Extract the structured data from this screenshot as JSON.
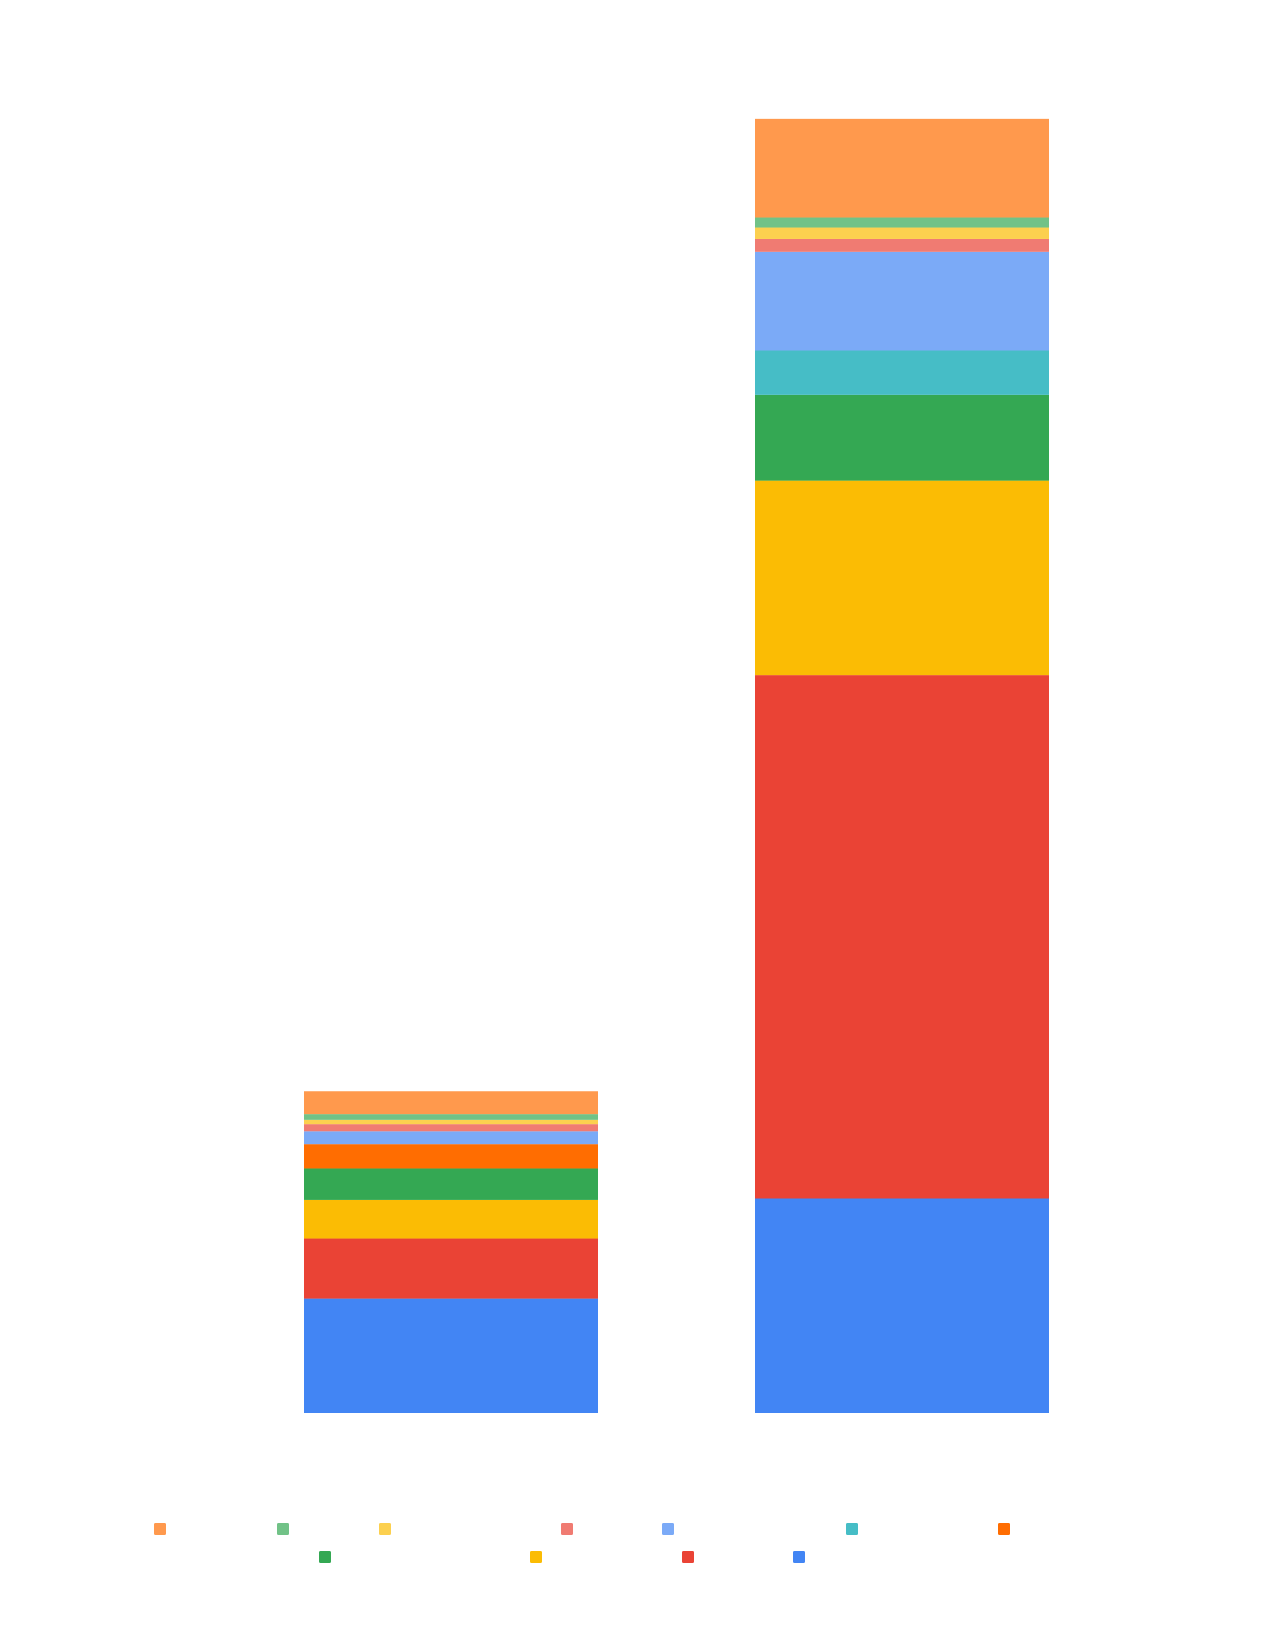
{
  "chart_data": {
    "type": "bar",
    "stacked": true,
    "title": "",
    "xlabel": "",
    "ylabel": "",
    "categories": [
      "",
      ""
    ],
    "grid": false,
    "legend_position": "bottom",
    "series": [
      {
        "color": "#4285F4",
        "values": [
          8.0,
          15.0
        ]
      },
      {
        "color": "#EA4335",
        "values": [
          4.2,
          36.6
        ]
      },
      {
        "color": "#FBBC04",
        "values": [
          2.7,
          13.6
        ]
      },
      {
        "color": "#34A853",
        "values": [
          2.2,
          6.0
        ]
      },
      {
        "color": "#FF6D01",
        "values": [
          1.7,
          0
        ]
      },
      {
        "color": "#46BDC6",
        "values": [
          0,
          3.1
        ]
      },
      {
        "color": "#7BAAF7",
        "values": [
          0.9,
          6.9
        ]
      },
      {
        "color": "#F07B72",
        "values": [
          0.5,
          0.9
        ]
      },
      {
        "color": "#FCD04F",
        "values": [
          0.3,
          0.8
        ]
      },
      {
        "color": "#71C287",
        "values": [
          0.4,
          0.7
        ]
      },
      {
        "color": "#FF994D",
        "values": [
          1.6,
          6.9
        ]
      }
    ]
  },
  "legend_order": [
    10,
    9,
    8,
    7,
    6,
    5,
    4,
    3,
    2,
    1,
    0
  ]
}
